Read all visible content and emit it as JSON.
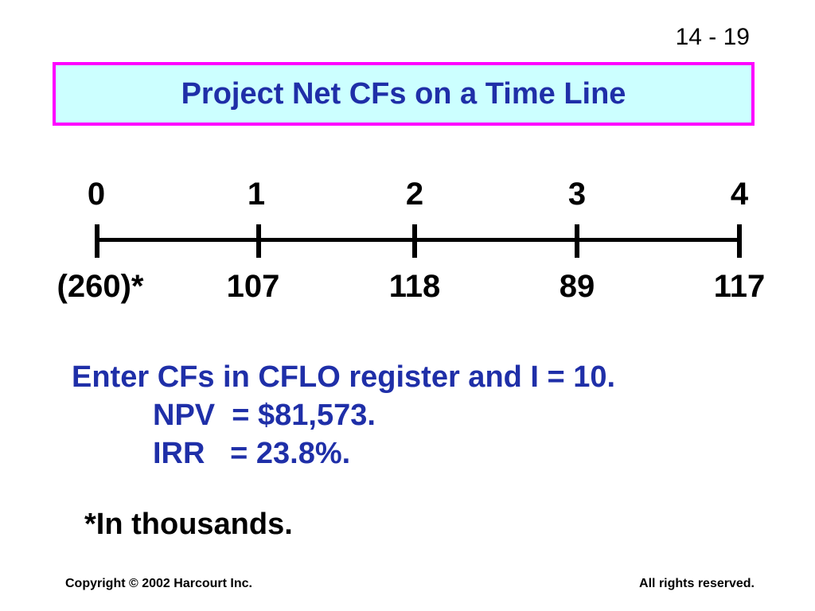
{
  "slide": {
    "page_number": "14 - 19",
    "title": "Project Net CFs on a Time Line"
  },
  "timeline": {
    "periods": [
      "0",
      "1",
      "2",
      "3",
      "4"
    ],
    "cash_flows": [
      "(260)*",
      "107",
      "118",
      "89",
      "117"
    ]
  },
  "notes": {
    "line1": "Enter CFs in CFLO register and I = 10.",
    "npv": "NPV  = $81,573.",
    "irr": "IRR   = 23.8%."
  },
  "footnote": "*In thousands.",
  "footer": {
    "copyright": "Copyright © 2002 Harcourt Inc.",
    "rights": "All rights reserved."
  },
  "colors": {
    "title_text": "#1f2fa8",
    "title_background": "#ccffff",
    "title_border": "#ff00ff",
    "notes_text": "#1f2fa8"
  }
}
